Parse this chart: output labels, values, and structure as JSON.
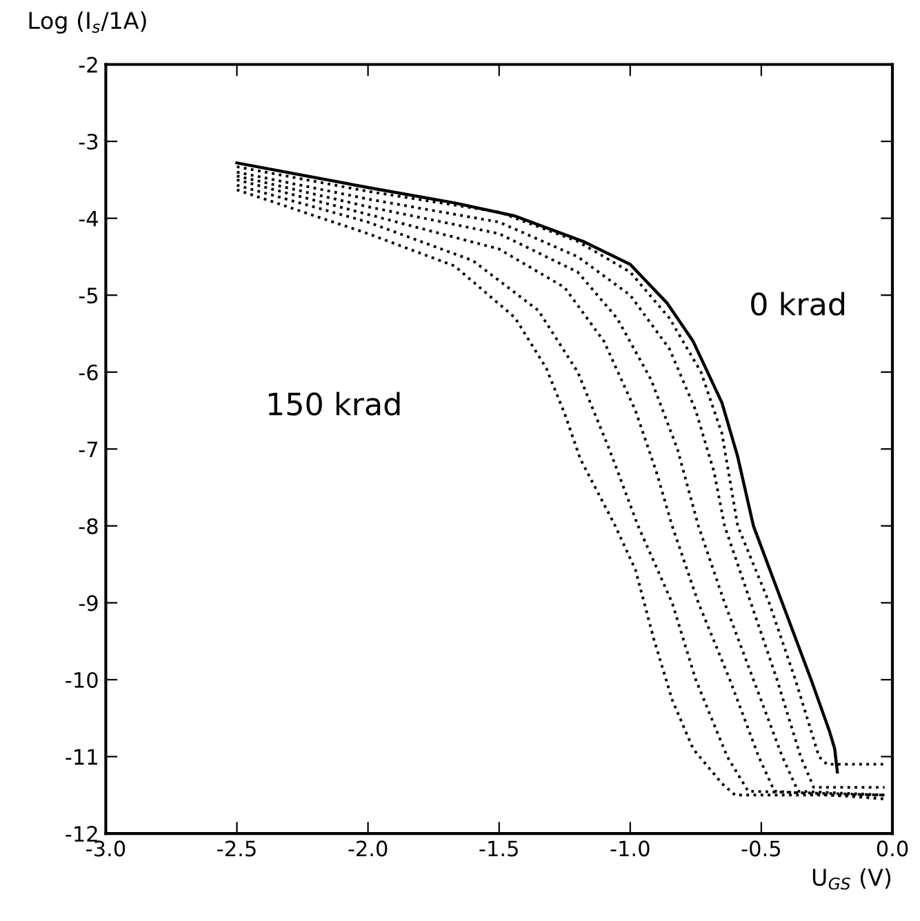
{
  "chart_data": {
    "type": "line",
    "xlabel": "U$_{GS}$ (V)",
    "ylabel": "Log (I$_{s}$/1A)",
    "xlim": [
      -3.0,
      0.0
    ],
    "ylim": [
      -12,
      -2
    ],
    "xticks": [
      {
        "value": -3,
        "label": "-3.0"
      },
      -2.5,
      {
        "value": -2,
        "label": "-2.0"
      },
      -1.5,
      {
        "value": -1,
        "label": "-1.0"
      },
      -0.5,
      {
        "value": 0,
        "label": "0.0"
      }
    ],
    "yticks": [
      -12,
      -11,
      -10,
      -9,
      -8,
      -7,
      -6,
      -5,
      -4,
      -3,
      -2
    ],
    "grid": false,
    "legend": false,
    "marker": "none",
    "series": [
      {
        "color": "#000000",
        "line_style": "solid",
        "x": [
          -2.5,
          -2.0,
          -1.67,
          -1.44,
          -1.18,
          -1.0,
          -0.86,
          -0.76,
          -0.65,
          -0.59,
          -0.53,
          -0.42,
          -0.31,
          -0.24,
          -0.22,
          -0.21
        ],
        "values": [
          -3.28,
          -3.6,
          -3.8,
          -3.97,
          -4.3,
          -4.6,
          -5.1,
          -5.6,
          -6.4,
          -7.1,
          -8.0,
          -9.0,
          -10.0,
          -10.67,
          -10.9,
          -11.2
        ]
      },
      {
        "color": "#000000",
        "line_style": "dotted",
        "x": [
          -2.5,
          -2.0,
          -1.5,
          -1.2,
          -1.0,
          -0.85,
          -0.73,
          -0.65,
          -0.59,
          -0.47,
          -0.37,
          -0.28,
          -0.25,
          -0.03
        ],
        "values": [
          -3.33,
          -3.65,
          -3.92,
          -4.3,
          -4.7,
          -5.3,
          -6.0,
          -6.8,
          -8.0,
          -9.0,
          -10.0,
          -11.0,
          -11.1,
          -11.1
        ]
      },
      {
        "color": "#000000",
        "line_style": "dotted",
        "x": [
          -2.5,
          -2.0,
          -1.5,
          -1.2,
          -1.0,
          -0.85,
          -0.75,
          -0.68,
          -0.64,
          -0.54,
          -0.44,
          -0.35,
          -0.3,
          -0.03
        ],
        "values": [
          -3.4,
          -3.75,
          -4.05,
          -4.5,
          -5.0,
          -5.7,
          -6.5,
          -7.3,
          -8.0,
          -9.0,
          -10.0,
          -11.0,
          -11.4,
          -11.4
        ]
      },
      {
        "color": "#000000",
        "line_style": "dotted",
        "x": [
          -2.5,
          -2.0,
          -1.5,
          -1.2,
          -1.05,
          -0.92,
          -0.82,
          -0.74,
          -0.64,
          -0.53,
          -0.42,
          -0.36,
          -0.03
        ],
        "values": [
          -3.45,
          -3.85,
          -4.2,
          -4.7,
          -5.3,
          -6.1,
          -7.0,
          -8.0,
          -9.0,
          -10.0,
          -11.0,
          -11.45,
          -11.5
        ]
      },
      {
        "color": "#000000",
        "line_style": "dotted",
        "x": [
          -2.5,
          -2.0,
          -1.5,
          -1.25,
          -1.1,
          -0.98,
          -0.9,
          -0.84,
          -0.74,
          -0.62,
          -0.51,
          -0.45,
          -0.03
        ],
        "values": [
          -3.5,
          -3.95,
          -4.4,
          -4.9,
          -5.6,
          -6.5,
          -7.3,
          -8.0,
          -9.0,
          -10.0,
          -11.0,
          -11.45,
          -11.55
        ]
      },
      {
        "color": "#000000",
        "line_style": "dotted",
        "x": [
          -2.5,
          -2.0,
          -1.6,
          -1.35,
          -1.2,
          -1.08,
          -0.97,
          -0.84,
          -0.75,
          -0.63,
          -0.55,
          -0.03
        ],
        "values": [
          -3.57,
          -4.05,
          -4.55,
          -5.2,
          -6.0,
          -7.0,
          -8.0,
          -9.0,
          -10.0,
          -11.0,
          -11.45,
          -11.5
        ]
      },
      {
        "color": "#000000",
        "line_style": "dotted",
        "x": [
          -2.5,
          -2.0,
          -1.67,
          -1.44,
          -1.32,
          -1.25,
          -1.19,
          -1.06,
          -0.98,
          -0.91,
          -0.84,
          -0.76,
          -0.65,
          -0.6,
          -0.03
        ],
        "values": [
          -3.63,
          -4.2,
          -4.62,
          -5.29,
          -5.95,
          -6.54,
          -7.13,
          -7.98,
          -8.57,
          -9.47,
          -10.26,
          -10.9,
          -11.35,
          -11.5,
          -11.5
        ]
      }
    ],
    "annotations": [
      "0 krad",
      "150 krad"
    ]
  }
}
